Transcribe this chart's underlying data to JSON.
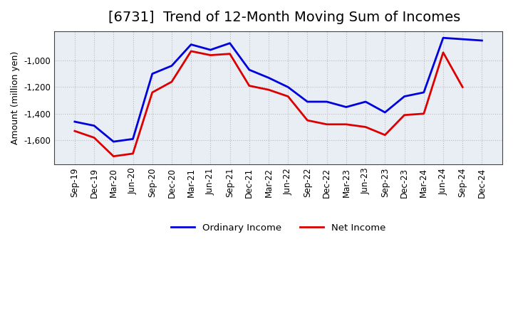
{
  "title": "[6731]  Trend of 12-Month Moving Sum of Incomes",
  "ylabel": "Amount (million yen)",
  "x_labels": [
    "Sep-19",
    "Dec-19",
    "Mar-20",
    "Jun-20",
    "Sep-20",
    "Dec-20",
    "Mar-21",
    "Jun-21",
    "Sep-21",
    "Dec-21",
    "Mar-22",
    "Jun-22",
    "Sep-22",
    "Dec-22",
    "Mar-23",
    "Jun-23",
    "Sep-23",
    "Dec-23",
    "Mar-24",
    "Jun-24",
    "Sep-24",
    "Dec-24"
  ],
  "ordinary_income": [
    -1460,
    -1490,
    -1610,
    -1590,
    -1100,
    -1040,
    -880,
    -920,
    -870,
    -1070,
    -1130,
    -1200,
    -1310,
    -1310,
    -1350,
    -1310,
    -1390,
    -1270,
    -1240,
    -830,
    -840,
    -850
  ],
  "net_income": [
    -1530,
    -1580,
    -1720,
    -1700,
    -1240,
    -1160,
    -930,
    -960,
    -950,
    -1190,
    -1220,
    -1270,
    -1450,
    -1480,
    -1480,
    -1500,
    -1560,
    -1410,
    -1400,
    -940,
    -1200,
    null
  ],
  "ordinary_color": "#0000dd",
  "net_color": "#dd0000",
  "legend_ordinary": "Ordinary Income",
  "legend_net": "Net Income",
  "ylim": [
    -1780,
    -780
  ],
  "yticks": [
    -1600,
    -1400,
    -1200,
    -1000
  ],
  "grid_color": "#bbbbbb",
  "bg_color": "#ffffff",
  "plot_bg_color": "#e8eef4",
  "line_width": 2.0,
  "title_fontsize": 14,
  "label_fontsize": 9,
  "tick_fontsize": 8.5,
  "legend_fontsize": 9.5
}
